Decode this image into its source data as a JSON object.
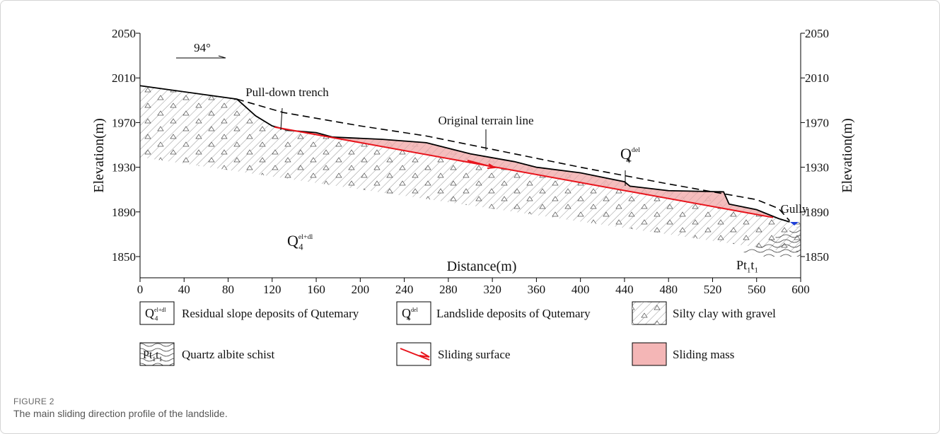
{
  "chart_data": {
    "type": "profile",
    "xlabel": "Distance(m)",
    "ylabel": "Elevation(m)",
    "y2label": "Elevation(m)",
    "xlim": [
      0,
      600
    ],
    "xticks": [
      0,
      40,
      80,
      120,
      160,
      200,
      240,
      280,
      320,
      360,
      400,
      440,
      480,
      520,
      560,
      600
    ],
    "ylim": [
      1831,
      2050
    ],
    "yticks": [
      1850,
      1890,
      1930,
      1970,
      2010,
      2050
    ],
    "series": [
      {
        "color": "#000000",
        "x": [
          0,
          88,
          105,
          120,
          135,
          160,
          175,
          220,
          260,
          300,
          340,
          360,
          400,
          440,
          445,
          480,
          530,
          535,
          560,
          580,
          590
        ],
        "values": [
          2003,
          1991,
          1976,
          1967,
          1963,
          1961,
          1957,
          1955,
          1952,
          1942,
          1935,
          1930,
          1925,
          1917,
          1913,
          1909,
          1908,
          1897,
          1892,
          1884,
          1881
        ]
      },
      {
        "name": "Original terrain line",
        "color": "#000000",
        "x": [
          88,
          130,
          200,
          260,
          320,
          400,
          480,
          560,
          580,
          590
        ],
        "values": [
          1991,
          1979,
          1967,
          1958,
          1946,
          1930,
          1915,
          1901,
          1893,
          1882
        ]
      },
      {
        "name": "Sliding surface",
        "color": "#e8141c",
        "x": [
          122,
          575
        ],
        "values": [
          1966,
          1885
        ]
      },
      {
        "color": "#555555",
        "x": [
          0,
          590
        ],
        "values": [
          1939,
          1854
        ]
      }
    ],
    "mass_color": "#f4b6b6",
    "annotations": {
      "direction": "94°",
      "trench": "Pull-down trench",
      "gully": "Gully",
      "q_eldl": {
        "base": "Q",
        "sub": "4",
        "sup": "el+dl"
      },
      "q_del": {
        "base": "Q",
        "sub": "4",
        "sup": "del"
      },
      "pt": [
        "Pt",
        "1",
        "t",
        "1"
      ]
    },
    "legend": [
      "Residual slope deposits of Qutemary",
      "Landslide deposits of Qutemary",
      "Silty clay with gravel",
      "Quartz albite schist",
      "Sliding surface",
      "Sliding mass"
    ]
  },
  "caption": {
    "label": "FIGURE 2",
    "text": "The main sliding direction profile of the landslide."
  }
}
